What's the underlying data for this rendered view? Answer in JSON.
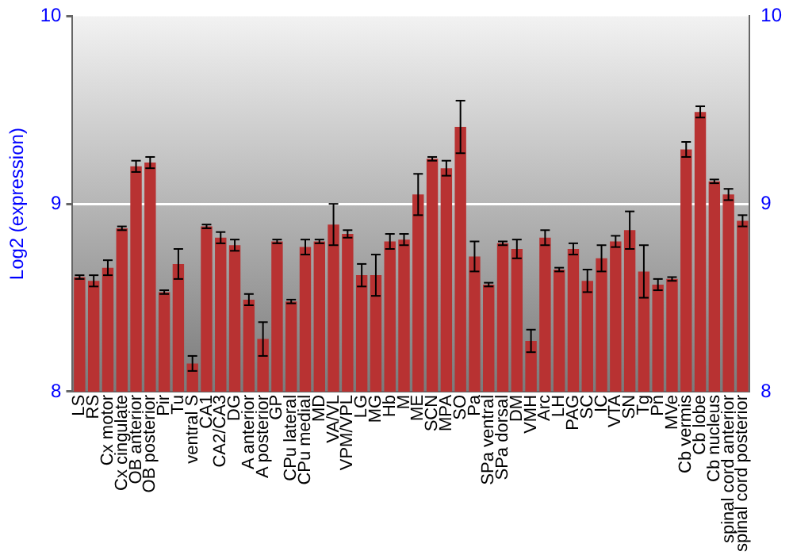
{
  "chart_data": {
    "type": "bar",
    "ylabel": "Log2 (expression)",
    "categories": [
      "LS",
      "RS",
      "Cx motor",
      "Cx cingulate",
      "OB anterior",
      "OB posterior",
      "Pir",
      "Tu",
      "ventral S",
      "CA1",
      "CA2/CA3",
      "DG",
      "A anterior",
      "A posterior",
      "GP",
      "CPu lateral",
      "CPu medial",
      "MD",
      "VA/VL",
      "VPM/VPL",
      "LG",
      "MG",
      "Hb",
      "M",
      "ME",
      "SCN",
      "MPA",
      "SO",
      "Pa",
      "SPa ventral",
      "SPa dorsal",
      "DM",
      "VMH",
      "Arc",
      "LH",
      "PAG",
      "SC",
      "IC",
      "VTA",
      "SN",
      "Tg",
      "Pn",
      "MVe",
      "Cb vermis",
      "Cb lobe",
      "Cb nucleus",
      "spinal cord anterior",
      "spinal cord posterior"
    ],
    "values": [
      8.61,
      8.59,
      8.66,
      8.87,
      9.2,
      9.22,
      8.53,
      8.68,
      8.15,
      8.88,
      8.82,
      8.78,
      8.49,
      8.28,
      8.8,
      8.48,
      8.77,
      8.8,
      8.89,
      8.84,
      8.62,
      8.62,
      8.8,
      8.81,
      9.05,
      9.24,
      9.19,
      9.41,
      8.72,
      8.57,
      8.79,
      8.76,
      8.27,
      8.82,
      8.65,
      8.76,
      8.59,
      8.71,
      8.8,
      8.86,
      8.64,
      8.57,
      8.6,
      9.29,
      9.49,
      9.12,
      9.05,
      8.91
    ],
    "errors": [
      0.01,
      0.03,
      0.04,
      0.01,
      0.03,
      0.03,
      0.01,
      0.08,
      0.04,
      0.01,
      0.03,
      0.03,
      0.03,
      0.09,
      0.01,
      0.01,
      0.04,
      0.01,
      0.11,
      0.02,
      0.06,
      0.11,
      0.04,
      0.03,
      0.11,
      0.01,
      0.04,
      0.14,
      0.08,
      0.01,
      0.01,
      0.05,
      0.06,
      0.04,
      0.01,
      0.03,
      0.06,
      0.07,
      0.03,
      0.1,
      0.14,
      0.03,
      0.01,
      0.04,
      0.03,
      0.01,
      0.03,
      0.03
    ],
    "color": "#b83232",
    "ylim": [
      8,
      10
    ],
    "yticks": [
      8,
      9,
      10
    ],
    "y2lim": [
      8,
      10
    ],
    "y2ticks": [
      8,
      9,
      10
    ],
    "grid": "y"
  }
}
